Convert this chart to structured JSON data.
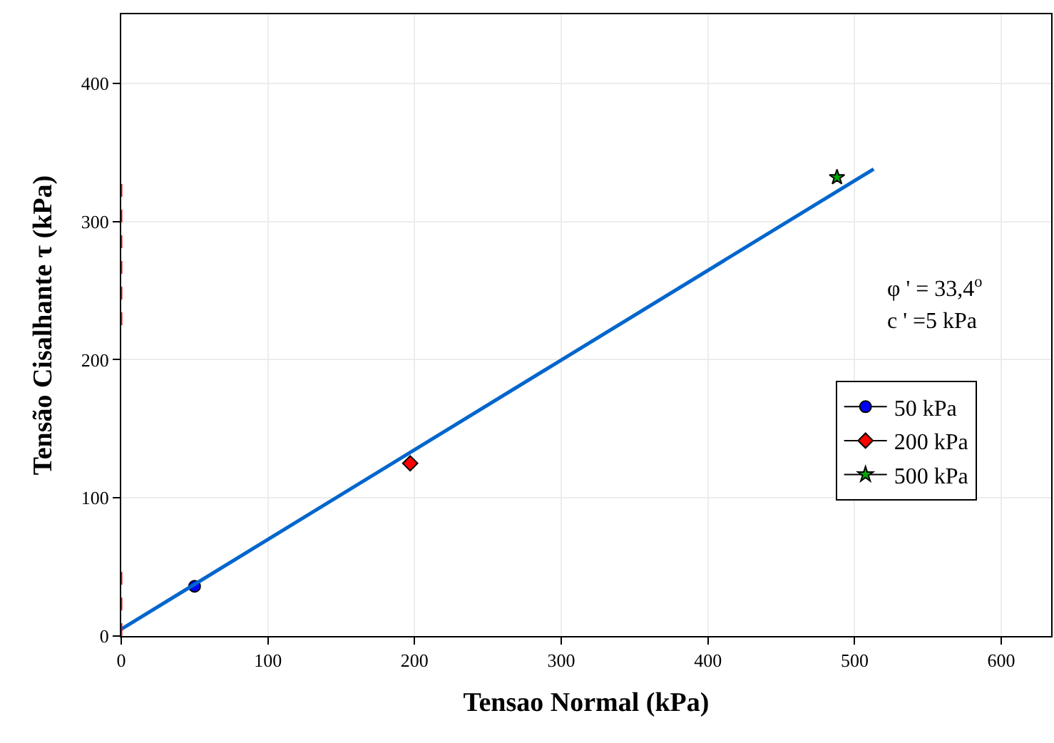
{
  "chart_data": {
    "type": "scatter",
    "xlabel": "Tensao Normal (kPa)",
    "ylabel": "Tensão Cisalhante τ (kPa)",
    "xlim": [
      0,
      634
    ],
    "ylim": [
      0,
      450
    ],
    "xticks": [
      0,
      100,
      200,
      300,
      400,
      500,
      600
    ],
    "yticks": [
      0,
      100,
      200,
      300,
      400
    ],
    "grid": true,
    "legend": "center right",
    "series": [
      {
        "name": "50 kPa",
        "color": "#0000ff",
        "marker": "circle",
        "x": [
          50
        ],
        "values": [
          36
        ]
      },
      {
        "name": "200 kPa",
        "color": "#ff0000",
        "marker": "diamond",
        "x": [
          197
        ],
        "values": [
          125
        ]
      },
      {
        "name": "500 kPa",
        "color": "#00aa00",
        "marker": "star",
        "x": [
          488
        ],
        "values": [
          332
        ]
      },
      {
        "type": "line",
        "color": "#0066cc",
        "line_style": "solid",
        "x": [
          0,
          513
        ],
        "values": [
          5,
          338
        ]
      },
      {
        "type": "line",
        "color": "#ff0000",
        "line_style": "dashed",
        "x": [
          0,
          0
        ],
        "values": [
          0,
          49
        ]
      },
      {
        "type": "line",
        "color": "#ff0000",
        "line_style": "dashed",
        "x": [
          0,
          0
        ],
        "values": [
          225,
          333
        ]
      }
    ],
    "annotations": [
      "φ ' = 33,4$^{o}$",
      "c ' =5 kPa"
    ]
  }
}
